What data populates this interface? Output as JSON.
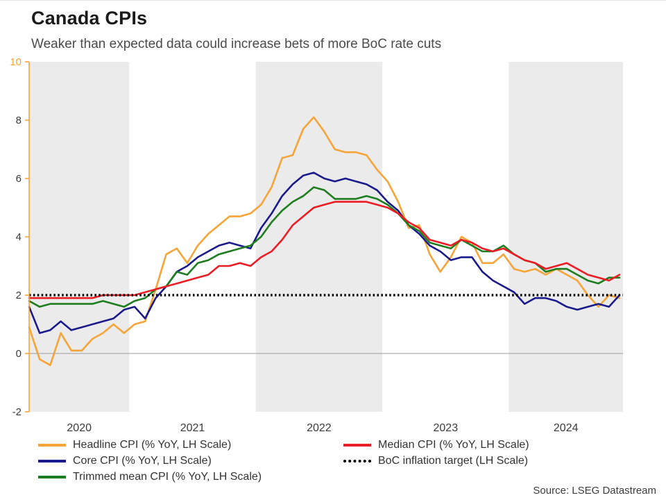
{
  "header": {
    "title": "Canada CPIs",
    "subtitle": "Weaker than expected data could increase bets of more BoC rate cuts"
  },
  "footer": {
    "source": "Source: LSEG Datastream"
  },
  "legend": {
    "columns": [
      [
        {
          "key": "headline-cpi",
          "label": "Headline CPI (% YoY, LH Scale)",
          "color": "#F6A437",
          "style": "solid"
        },
        {
          "key": "core-cpi",
          "label": "Core CPI (% YoY, LH Scale)",
          "color": "#1A1A8C",
          "style": "solid"
        },
        {
          "key": "trimmed-mean-cpi",
          "label": "Trimmed mean CPI (% YoY, LH Scale)",
          "color": "#1E7D1E",
          "style": "solid"
        }
      ],
      [
        {
          "key": "median-cpi",
          "label": "Median CPI (% YoY, LH Scale)",
          "color": "#EC1C24",
          "style": "solid"
        },
        {
          "key": "boc-inflation-target",
          "label": "BoC inflation target (LH Scale)",
          "color": "#000000",
          "style": "dotted"
        }
      ]
    ]
  },
  "chart_data": {
    "type": "line",
    "title": "Canada CPIs",
    "subtitle": "Weaker than expected data could increase bets of more BoC rate cuts",
    "xlabel": "",
    "ylabel": "",
    "ylim": [
      -2,
      10
    ],
    "y_ticks": [
      -2,
      0,
      2,
      4,
      6,
      8,
      10
    ],
    "x_tick_labels": [
      "2020",
      "2021",
      "2022",
      "2023",
      "2024"
    ],
    "axis_color": "#F6A437",
    "band_color": "#EBEBEB",
    "shaded_years": [
      "2020",
      "2022",
      "2024"
    ],
    "grid": false,
    "legend_position": "bottom",
    "months": [
      "2020-03",
      "2020-04",
      "2020-05",
      "2020-06",
      "2020-07",
      "2020-08",
      "2020-09",
      "2020-10",
      "2020-11",
      "2020-12",
      "2021-01",
      "2021-02",
      "2021-03",
      "2021-04",
      "2021-05",
      "2021-06",
      "2021-07",
      "2021-08",
      "2021-09",
      "2021-10",
      "2021-11",
      "2021-12",
      "2022-01",
      "2022-02",
      "2022-03",
      "2022-04",
      "2022-05",
      "2022-06",
      "2022-07",
      "2022-08",
      "2022-09",
      "2022-10",
      "2022-11",
      "2022-12",
      "2023-01",
      "2023-02",
      "2023-03",
      "2023-04",
      "2023-05",
      "2023-06",
      "2023-07",
      "2023-08",
      "2023-09",
      "2023-10",
      "2023-11",
      "2023-12",
      "2024-01",
      "2024-02",
      "2024-03",
      "2024-04",
      "2024-05",
      "2024-06",
      "2024-07",
      "2024-08",
      "2024-09",
      "2024-10",
      "2024-11"
    ],
    "series": [
      {
        "key": "headline-cpi",
        "name": "Headline CPI (% YoY, LH Scale)",
        "color": "#F6A437",
        "values": [
          0.9,
          -0.2,
          -0.4,
          0.7,
          0.1,
          0.1,
          0.5,
          0.7,
          1.0,
          0.7,
          1.0,
          1.1,
          2.2,
          3.4,
          3.6,
          3.1,
          3.7,
          4.1,
          4.4,
          4.7,
          4.7,
          4.8,
          5.1,
          5.7,
          6.7,
          6.8,
          7.7,
          8.1,
          7.6,
          7.0,
          6.9,
          6.9,
          6.8,
          6.3,
          5.9,
          5.2,
          4.3,
          4.4,
          3.4,
          2.8,
          3.3,
          4.0,
          3.8,
          3.1,
          3.1,
          3.4,
          2.9,
          2.8,
          2.9,
          2.7,
          2.9,
          2.7,
          2.5,
          2.0,
          1.6,
          2.0,
          1.9
        ]
      },
      {
        "key": "core-cpi",
        "name": "Core CPI (% YoY, LH Scale)",
        "color": "#1A1A8C",
        "values": [
          1.6,
          0.7,
          0.8,
          1.1,
          0.8,
          0.9,
          1.0,
          1.1,
          1.2,
          1.5,
          1.6,
          1.2,
          1.9,
          2.3,
          2.8,
          3.0,
          3.3,
          3.5,
          3.7,
          3.8,
          3.7,
          3.6,
          4.3,
          4.8,
          5.4,
          5.8,
          6.1,
          6.2,
          6.0,
          5.9,
          6.0,
          5.9,
          5.8,
          5.6,
          5.2,
          4.9,
          4.4,
          4.1,
          3.7,
          3.5,
          3.2,
          3.3,
          3.3,
          2.8,
          2.5,
          2.3,
          2.1,
          1.7,
          1.9,
          1.9,
          1.8,
          1.6,
          1.5,
          1.6,
          1.7,
          1.6,
          2.0
        ]
      },
      {
        "key": "trimmed-mean-cpi",
        "name": "Trimmed mean CPI (% YoY, LH Scale)",
        "color": "#1E7D1E",
        "values": [
          1.8,
          1.6,
          1.7,
          1.7,
          1.7,
          1.7,
          1.7,
          1.8,
          1.7,
          1.6,
          1.8,
          1.9,
          2.2,
          2.3,
          2.8,
          2.7,
          3.1,
          3.2,
          3.4,
          3.5,
          3.6,
          3.7,
          4.0,
          4.5,
          4.9,
          5.2,
          5.4,
          5.7,
          5.6,
          5.3,
          5.3,
          5.3,
          5.4,
          5.3,
          5.1,
          4.8,
          4.4,
          4.2,
          3.8,
          3.7,
          3.6,
          3.9,
          3.7,
          3.5,
          3.5,
          3.7,
          3.4,
          3.2,
          3.1,
          2.8,
          2.9,
          2.9,
          2.7,
          2.5,
          2.4,
          2.6,
          2.6
        ]
      },
      {
        "key": "median-cpi",
        "name": "Median CPI (% YoY, LH Scale)",
        "color": "#EC1C24",
        "values": [
          1.9,
          1.9,
          1.9,
          1.9,
          1.9,
          1.9,
          1.9,
          2.0,
          2.0,
          2.0,
          2.0,
          2.1,
          2.2,
          2.3,
          2.4,
          2.5,
          2.6,
          2.7,
          3.0,
          3.0,
          3.1,
          3.0,
          3.3,
          3.5,
          3.9,
          4.4,
          4.7,
          5.0,
          5.1,
          5.2,
          5.2,
          5.2,
          5.2,
          5.1,
          5.0,
          4.8,
          4.5,
          4.3,
          3.9,
          3.8,
          3.7,
          3.9,
          3.8,
          3.6,
          3.5,
          3.6,
          3.4,
          3.2,
          3.1,
          2.9,
          3.0,
          3.1,
          2.9,
          2.7,
          2.6,
          2.5,
          2.7
        ]
      }
    ],
    "reference_line": {
      "key": "boc-inflation-target",
      "name": "BoC inflation target (LH Scale)",
      "value": 2.0,
      "color": "#000000",
      "style": "dotted"
    }
  }
}
